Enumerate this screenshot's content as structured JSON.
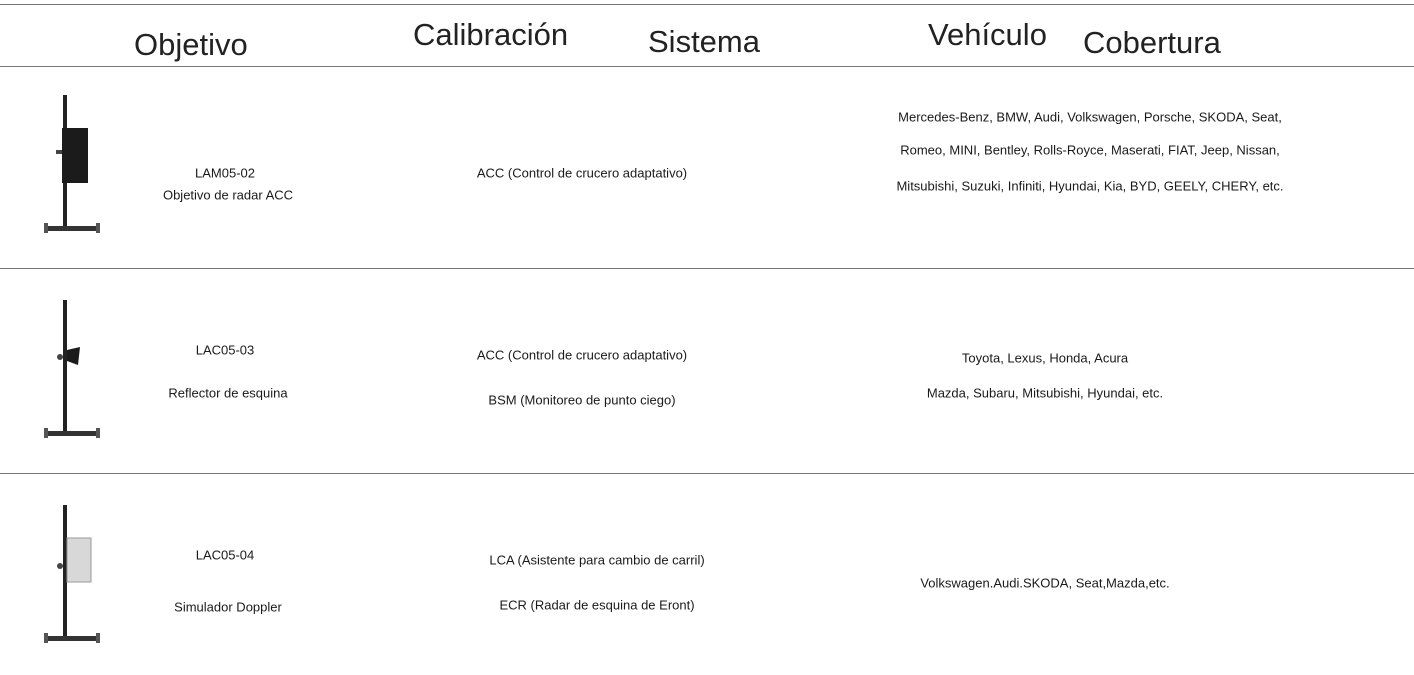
{
  "header": {
    "columns": [
      "Objetivo",
      "Calibración",
      "Sistema",
      "Vehículo",
      "Cobertura"
    ]
  },
  "table": {
    "rows": [
      {
        "code": "LAM05-02",
        "name": "Objetivo de radar ACC",
        "systems": [
          "ACC (Control de crucero adaptativo)"
        ],
        "coverage": [
          "Mercedes-Benz, BMW, Audi, Volkswagen, Porsche, SKODA, Seat,",
          "Romeo, MINI, Bentley, Rolls-Royce, Maserati, FIAT, Jeep, Nissan,",
          "Mitsubishi, Suzuki, Infiniti, Hyundai, Kia, BYD, GEELY, CHERY, etc."
        ]
      },
      {
        "code": "LAC05-03",
        "name": "Reflector de esquina",
        "systems": [
          "ACC (Control de crucero adaptativo)",
          "BSM (Monitoreo de punto ciego)"
        ],
        "coverage": [
          "Toyota, Lexus, Honda, Acura",
          "Mazda, Subaru, Mitsubishi, Hyundai, etc."
        ]
      },
      {
        "code": "LAC05-04",
        "name": "Simulador Doppler",
        "systems": [
          "LCA (Asistente para cambio de carril)",
          "ECR (Radar de esquina de Eront)"
        ],
        "coverage": [
          "Volkswagen.Audi.SKODA, Seat,Mazda,etc."
        ]
      }
    ]
  }
}
